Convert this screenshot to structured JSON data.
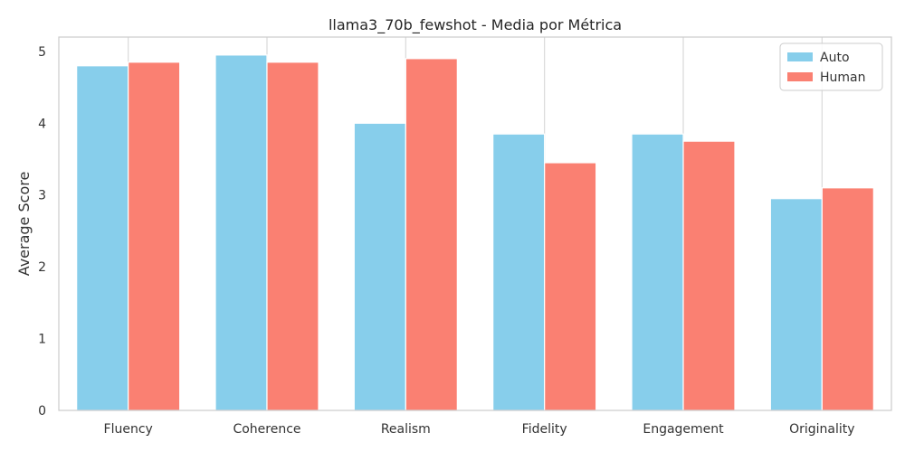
{
  "chart_data": {
    "type": "bar",
    "title": "llama3_70b_fewshot - Media por Métrica",
    "xlabel": "",
    "ylabel": "Average Score",
    "categories": [
      "Fluency",
      "Coherence",
      "Realism",
      "Fidelity",
      "Engagement",
      "Originality"
    ],
    "series": [
      {
        "name": "Auto",
        "color": "#87ceeb",
        "values": [
          4.8,
          4.95,
          4.0,
          3.85,
          3.85,
          2.95
        ]
      },
      {
        "name": "Human",
        "color": "#fa8072",
        "values": [
          4.85,
          4.85,
          4.9,
          3.45,
          3.75,
          3.1
        ]
      }
    ],
    "ylim": [
      0,
      5.2
    ],
    "yticks": [
      0,
      1,
      2,
      3,
      4,
      5
    ],
    "grid": "vertical",
    "legend_position": "top-right"
  }
}
